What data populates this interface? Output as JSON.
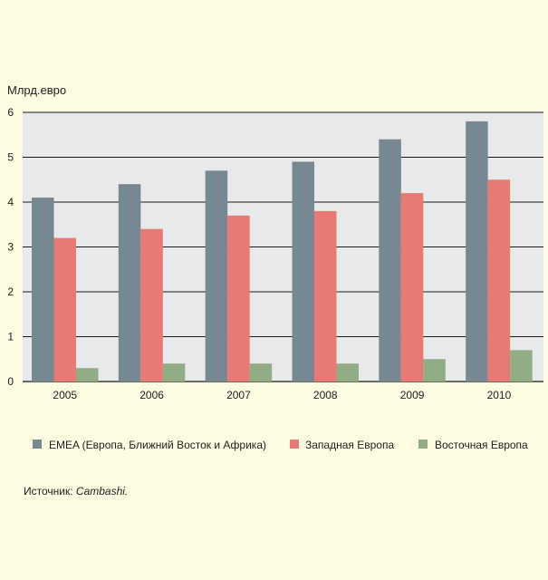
{
  "chart_data": {
    "type": "bar",
    "ylabel": "Млрд.евро",
    "ylim": [
      0,
      6
    ],
    "yticks": [
      0,
      1,
      2,
      3,
      4,
      5,
      6
    ],
    "grid": true,
    "legend_position": "bottom",
    "categories": [
      "2005",
      "2006",
      "2007",
      "2008",
      "2009",
      "2010"
    ],
    "series": [
      {
        "name": "EMEA (Европа, Ближний Восток и Африка)",
        "color": "#778892",
        "values": [
          4.1,
          4.4,
          4.7,
          4.9,
          5.4,
          5.8
        ]
      },
      {
        "name": "Западная Европа",
        "color": "#e87a76",
        "values": [
          3.2,
          3.4,
          3.7,
          3.8,
          4.2,
          4.5
        ]
      },
      {
        "name": "Восточная Европа",
        "color": "#92ad86",
        "values": [
          0.3,
          0.4,
          0.4,
          0.4,
          0.5,
          0.7
        ]
      }
    ]
  },
  "source": {
    "label": "Источник:",
    "name": "Cambashi."
  },
  "colors": {
    "plot_background": "#e8e9ea",
    "page_background": "#fefbe3"
  }
}
